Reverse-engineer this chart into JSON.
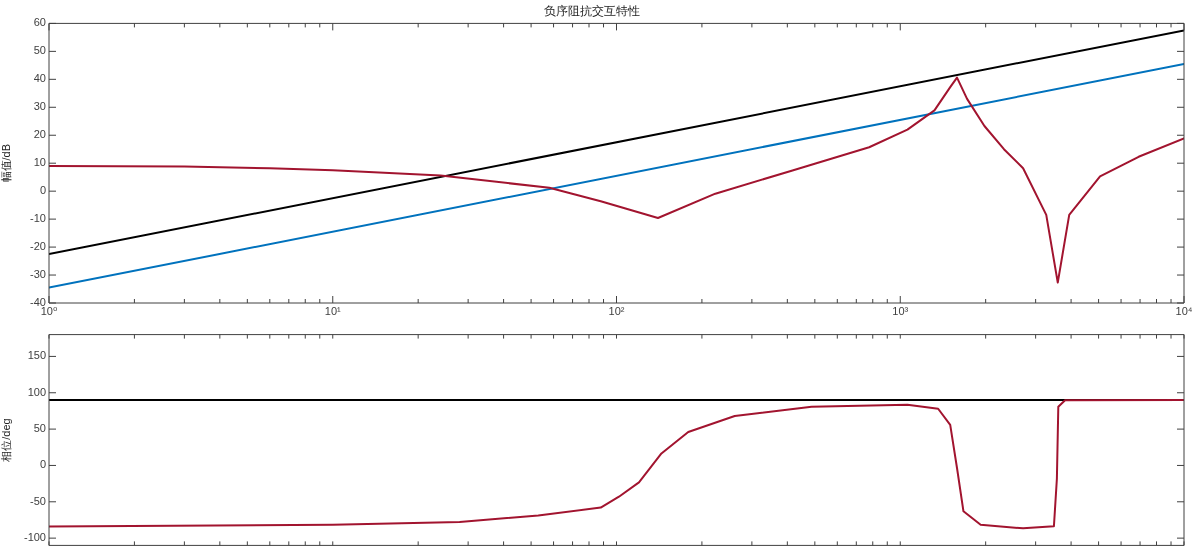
{
  "chart_data": [
    {
      "type": "line",
      "title": "负序阻抗交互特性",
      "ylabel": "幅值/dB",
      "log": "x",
      "xlim": [
        1,
        10000
      ],
      "xticks": [
        {
          "value": 1,
          "label": "10⁰"
        },
        {
          "value": 2,
          "label": null
        },
        {
          "value": 3,
          "label": null
        },
        {
          "value": 4,
          "label": null
        },
        {
          "value": 5,
          "label": null
        },
        {
          "value": 6,
          "label": null
        },
        {
          "value": 7,
          "label": null
        },
        {
          "value": 8,
          "label": null
        },
        {
          "value": 9,
          "label": null
        },
        {
          "value": 10,
          "label": "10¹"
        },
        {
          "value": 20,
          "label": null
        },
        {
          "value": 30,
          "label": null
        },
        {
          "value": 40,
          "label": null
        },
        {
          "value": 50,
          "label": null
        },
        {
          "value": 60,
          "label": null
        },
        {
          "value": 70,
          "label": null
        },
        {
          "value": 80,
          "label": null
        },
        {
          "value": 90,
          "label": null
        },
        {
          "value": 100,
          "label": "10²"
        },
        {
          "value": 200,
          "label": null
        },
        {
          "value": 300,
          "label": null
        },
        {
          "value": 400,
          "label": null
        },
        {
          "value": 500,
          "label": null
        },
        {
          "value": 600,
          "label": null
        },
        {
          "value": 700,
          "label": null
        },
        {
          "value": 800,
          "label": null
        },
        {
          "value": 900,
          "label": null
        },
        {
          "value": 1000,
          "label": "10³"
        },
        {
          "value": 2000,
          "label": null
        },
        {
          "value": 3000,
          "label": null
        },
        {
          "value": 4000,
          "label": null
        },
        {
          "value": 5000,
          "label": null
        },
        {
          "value": 6000,
          "label": null
        },
        {
          "value": 7000,
          "label": null
        },
        {
          "value": 8000,
          "label": null
        },
        {
          "value": 9000,
          "label": null
        },
        {
          "value": 10000,
          "label": "10⁴"
        }
      ],
      "ylim": [
        -40,
        60
      ],
      "yticks": [
        -40,
        -30,
        -20,
        -10,
        0,
        10,
        20,
        30,
        40,
        50,
        60
      ],
      "series": [
        {
          "color": "#000000",
          "x": [
            1,
            10000
          ],
          "values": [
            -22.5,
            57.5
          ]
        },
        {
          "color": "#0072bd",
          "x": [
            1,
            10000
          ],
          "values": [
            -34.5,
            45.5
          ]
        },
        {
          "color": "#a2142f",
          "x": [
            1,
            3,
            6,
            10,
            24,
            58,
            88,
            140,
            223,
            417,
            777,
            1060,
            1320,
            1500,
            1585,
            1720,
            1980,
            2320,
            2710,
            3270,
            3590,
            3940,
            5060,
            6920,
            10000
          ],
          "values": [
            9,
            8.8,
            8.2,
            7.5,
            5.6,
            1.2,
            -3.6,
            -9.6,
            -0.9,
            7.4,
            15.7,
            22,
            28.9,
            37.2,
            40.6,
            33,
            23.3,
            15,
            8.2,
            -8.5,
            -32.7,
            -8.5,
            5.3,
            12.3,
            18.9
          ]
        }
      ]
    },
    {
      "type": "line",
      "ylabel": "相位/deg",
      "log": "x",
      "xlim": [
        1,
        10000
      ],
      "tick_labels": "y",
      "xticks": [
        {
          "value": 1,
          "label": null
        },
        {
          "value": 2,
          "label": null
        },
        {
          "value": 3,
          "label": null
        },
        {
          "value": 4,
          "label": null
        },
        {
          "value": 5,
          "label": null
        },
        {
          "value": 6,
          "label": null
        },
        {
          "value": 7,
          "label": null
        },
        {
          "value": 8,
          "label": null
        },
        {
          "value": 9,
          "label": null
        },
        {
          "value": 10,
          "label": null
        },
        {
          "value": 20,
          "label": null
        },
        {
          "value": 30,
          "label": null
        },
        {
          "value": 40,
          "label": null
        },
        {
          "value": 50,
          "label": null
        },
        {
          "value": 60,
          "label": null
        },
        {
          "value": 70,
          "label": null
        },
        {
          "value": 80,
          "label": null
        },
        {
          "value": 90,
          "label": null
        },
        {
          "value": 100,
          "label": null
        },
        {
          "value": 200,
          "label": null
        },
        {
          "value": 300,
          "label": null
        },
        {
          "value": 400,
          "label": null
        },
        {
          "value": 500,
          "label": null
        },
        {
          "value": 600,
          "label": null
        },
        {
          "value": 700,
          "label": null
        },
        {
          "value": 800,
          "label": null
        },
        {
          "value": 900,
          "label": null
        },
        {
          "value": 1000,
          "label": null
        },
        {
          "value": 2000,
          "label": null
        },
        {
          "value": 3000,
          "label": null
        },
        {
          "value": 4000,
          "label": null
        },
        {
          "value": 5000,
          "label": null
        },
        {
          "value": 6000,
          "label": null
        },
        {
          "value": 7000,
          "label": null
        },
        {
          "value": 8000,
          "label": null
        },
        {
          "value": 9000,
          "label": null
        },
        {
          "value": 10000,
          "label": null
        }
      ],
      "ylim": [
        -110,
        180
      ],
      "yticks": [
        -100,
        -50,
        0,
        50,
        100,
        150
      ],
      "series": [
        {
          "color": "#000000",
          "x": [
            1,
            10000
          ],
          "values": [
            90,
            90
          ]
        },
        {
          "color": "#a2142f",
          "x": [
            1,
            10,
            28,
            53,
            88,
            102,
            120,
            144,
            179,
            261,
            487,
            1060,
            1360,
            1500,
            1585,
            1670,
            1920,
            2710,
            3480,
            3565,
            3606,
            3810,
            10000
          ],
          "values": [
            -84,
            -81.7,
            -77.7,
            -68.9,
            -58,
            -43,
            -23.3,
            16.5,
            46,
            68,
            80.8,
            83.4,
            78,
            55.9,
            -3.5,
            -63,
            -81.7,
            -86.5,
            -83.7,
            -18,
            80.8,
            89.8,
            90
          ]
        }
      ]
    }
  ]
}
